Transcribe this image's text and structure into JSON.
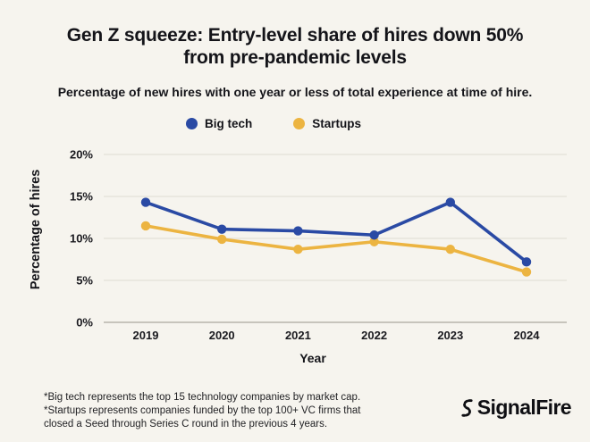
{
  "header": {
    "title_line1": "Gen Z squeeze: Entry-level share of hires down 50%",
    "title_line2": "from pre-pandemic levels",
    "subtitle": "Percentage of new hires with one year or less of total experience at time of hire."
  },
  "chart_data": {
    "type": "line",
    "x": [
      2019,
      2020,
      2021,
      2022,
      2023,
      2024
    ],
    "series": [
      {
        "name": "Big tech",
        "color": "#2a4aa4",
        "values": [
          14.3,
          11.1,
          10.9,
          10.4,
          14.3,
          7.2
        ]
      },
      {
        "name": "Startups",
        "color": "#ecb441",
        "values": [
          11.5,
          9.9,
          8.7,
          9.6,
          8.7,
          6.0
        ]
      }
    ],
    "xlabel": "Year",
    "ylabel": "Percentage of hires",
    "ylim": [
      0,
      20
    ],
    "yticks": [
      0,
      5,
      10,
      15,
      20
    ],
    "ytick_suffix": "%",
    "grid": true,
    "legend_position": "top"
  },
  "footnotes": [
    "*Big tech represents the top 15 technology companies by market cap.",
    "*Startups represents companies funded by the top 100+ VC firms that",
    "closed a Seed through Series C round in the previous 4 years."
  ],
  "branding": {
    "logo_text": "SignalFire"
  },
  "colors": {
    "background": "#f6f4ee",
    "grid": "#e3e0d8",
    "axis_line": "#b7b4ac",
    "text": "#17171c",
    "big_tech": "#2a4aa4",
    "startups": "#ecb441"
  }
}
